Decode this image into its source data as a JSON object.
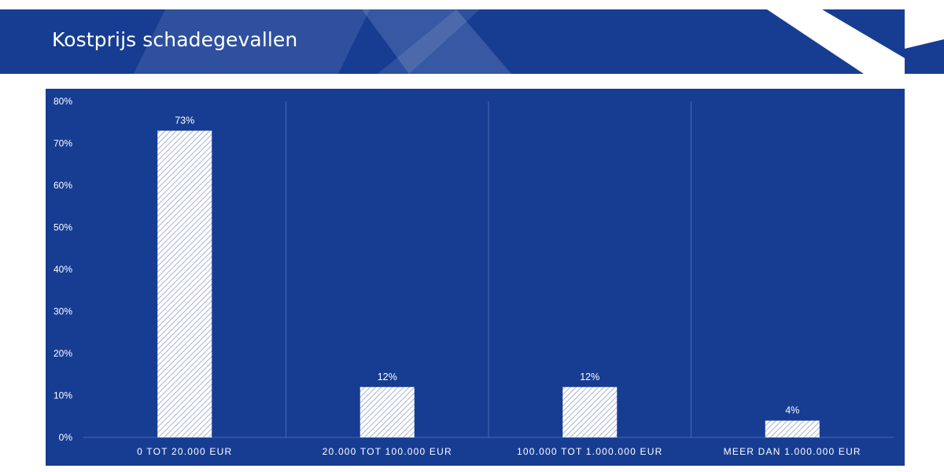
{
  "header": {
    "title": "Kostprijs schadegevallen"
  },
  "colors": {
    "background": "#173d93",
    "bar_fill": "#ffffff",
    "bar_hatch": "#8f9fc6",
    "gridline": "#4b67ac"
  },
  "chart_data": {
    "type": "bar",
    "title": "",
    "xlabel": "",
    "ylabel": "",
    "categories": [
      "0 TOT 20.000 EUR",
      "20.000 TOT 100.000 EUR",
      "100.000 TOT 1.000.000 EUR",
      "MEER DAN 1.000.000 EUR"
    ],
    "values": [
      73,
      12,
      12,
      4
    ],
    "data_labels": [
      "73%",
      "12%",
      "12%",
      "4%"
    ],
    "ylim": [
      0,
      80
    ],
    "yticks": [
      0,
      10,
      20,
      30,
      40,
      50,
      60,
      70,
      80
    ],
    "ytick_labels": [
      "0%",
      "10%",
      "20%",
      "30%",
      "40%",
      "50%",
      "60%",
      "70%",
      "80%"
    ],
    "grid": "vertical category separators",
    "legend": "none",
    "bar_pattern": "diagonal hatch"
  }
}
